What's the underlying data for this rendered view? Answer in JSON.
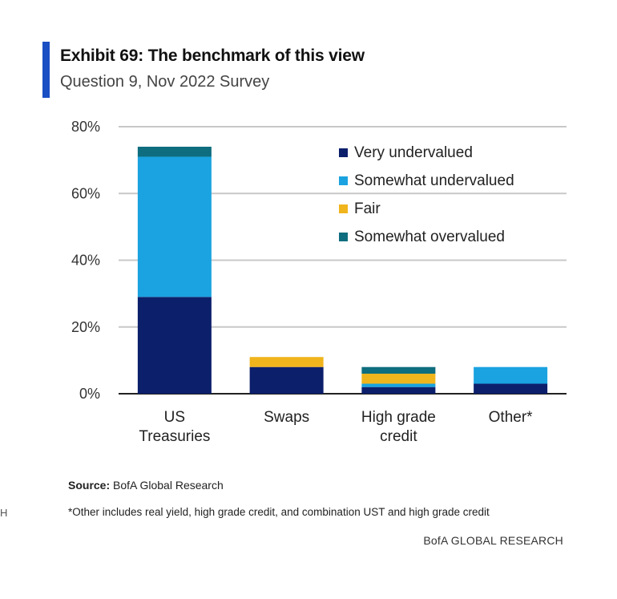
{
  "header": {
    "title": "Exhibit 69: The benchmark of this view",
    "subtitle": "Question 9, Nov 2022 Survey"
  },
  "chart_data": {
    "type": "bar",
    "stacked": true,
    "categories": [
      [
        "US",
        "Treasuries"
      ],
      [
        "Swaps"
      ],
      [
        "High grade",
        "credit"
      ],
      [
        "Other*"
      ]
    ],
    "series": [
      {
        "name": "Very undervalued",
        "color": "#0c1f6b",
        "values": [
          29,
          8,
          2,
          3
        ]
      },
      {
        "name": "Somewhat undervalued",
        "color": "#1aa3e0",
        "values": [
          42,
          0,
          1,
          5
        ]
      },
      {
        "name": "Fair",
        "color": "#f0b41c",
        "values": [
          0,
          3,
          3,
          0
        ]
      },
      {
        "name": "Somewhat overvalued",
        "color": "#0e6d7e",
        "values": [
          3,
          0,
          2,
          0
        ]
      }
    ],
    "ylim": [
      0,
      80
    ],
    "yticks": [
      "0%",
      "20%",
      "40%",
      "60%",
      "80%"
    ],
    "ytick_values": [
      0,
      20,
      40,
      60,
      80
    ],
    "grid": true,
    "legend_position": "top-right"
  },
  "footer": {
    "source_label": "Source:",
    "source_text": " BofA Global Research",
    "footnote": "*Other includes real yield, high grade credit, and combination UST and high grade credit",
    "brand": "BofA GLOBAL RESEARCH",
    "edge_mark": "H"
  }
}
